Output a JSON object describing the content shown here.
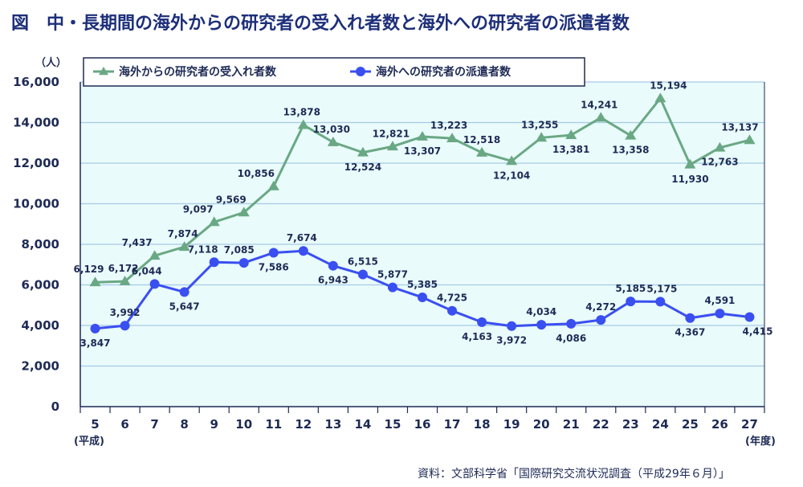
{
  "page": {
    "title": "図　中・長期間の海外からの研究者の受入れ者数と海外への研究者の派遣者数",
    "y_unit": "（人）",
    "x_era_label": "(平成)",
    "x_unit": "(年度)",
    "source": "資料：文部科学省「国際研究交流状況調査（平成29年６月）」"
  },
  "chart_data": {
    "type": "line",
    "title": "図　中・長期間の海外からの研究者の受入れ者数と海外への研究者の派遣者数",
    "xlabel": "(年度)",
    "ylabel": "（人）",
    "ylim": [
      0,
      16000
    ],
    "yticks": [
      0,
      2000,
      4000,
      6000,
      8000,
      10000,
      12000,
      14000,
      16000
    ],
    "ytick_labels": [
      "0",
      "2,000",
      "4,000",
      "6,000",
      "8,000",
      "10,000",
      "12,000",
      "14,000",
      "16,000"
    ],
    "grid": true,
    "legend_position": "top-left",
    "categories": [
      "5",
      "6",
      "7",
      "8",
      "9",
      "10",
      "11",
      "12",
      "13",
      "14",
      "15",
      "16",
      "17",
      "18",
      "19",
      "20",
      "21",
      "22",
      "23",
      "24",
      "25",
      "26",
      "27"
    ],
    "series": [
      {
        "name": "海外からの研究者の受入れ者数",
        "color": "#6aa884",
        "marker": "triangle",
        "values": [
          6129,
          6172,
          7437,
          7874,
          9097,
          9569,
          10856,
          13878,
          13030,
          12524,
          12821,
          13307,
          13223,
          12518,
          12104,
          13255,
          13381,
          14241,
          13358,
          15194,
          11930,
          12763,
          13137
        ],
        "labels": [
          "6,129",
          "6,172",
          "7,437",
          "7,874",
          "9,097",
          "9,569",
          "10,856",
          "13,878",
          "13,030",
          "12,524",
          "12,821",
          "13,307",
          "13,223",
          "12,518",
          "12,104",
          "13,255",
          "13,381",
          "14,241",
          "13,358",
          "15,194",
          "11,930",
          "12,763",
          "13,137"
        ]
      },
      {
        "name": "海外への研究者の派遣者数",
        "color": "#3a4ff0",
        "marker": "circle",
        "values": [
          3847,
          3992,
          6044,
          5647,
          7118,
          7085,
          7586,
          7674,
          6943,
          6515,
          5877,
          5385,
          4725,
          4163,
          3972,
          4034,
          4086,
          4272,
          5185,
          5175,
          4367,
          4591,
          4415
        ],
        "labels": [
          "3,847",
          "3,992",
          "6,044",
          "5,647",
          "7,118",
          "7,085",
          "7,586",
          "7,674",
          "6,943",
          "6,515",
          "5,877",
          "5,385",
          "4,725",
          "4,163",
          "3,972",
          "4,034",
          "4,086",
          "4,272",
          "5,185",
          "5,175",
          "4,367",
          "4,591",
          "4,415"
        ]
      }
    ],
    "colors": {
      "plot_background": "#e9fbfb",
      "gridline": "#a9c9e6",
      "axis": "#1e2a55"
    }
  }
}
